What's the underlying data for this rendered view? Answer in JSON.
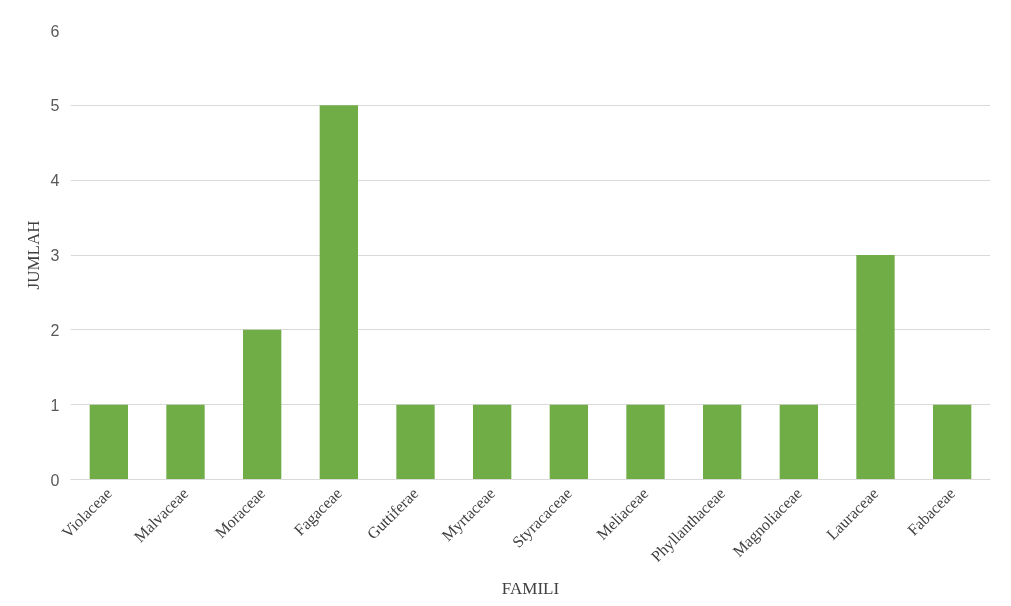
{
  "chart_data": {
    "type": "bar",
    "xlabel": "FAMILI",
    "ylabel": "JUMLAH",
    "categories": [
      "Violaceae",
      "Malvaceae",
      "Moraceae",
      "Fagaceae",
      "Guttiferae",
      "Myrtaceae",
      "Styracaceae",
      "Meliaceae",
      "Phyllanthaceae",
      "Magnoliaceae",
      "Lauraceae",
      "Fabaceae"
    ],
    "values": [
      1,
      1,
      2,
      5,
      1,
      1,
      1,
      1,
      1,
      1,
      3,
      1
    ],
    "color": "#70ad47",
    "ylim": [
      0,
      6
    ],
    "yticks": [
      0,
      1,
      2,
      3,
      4,
      5,
      6
    ],
    "grid": "y"
  }
}
